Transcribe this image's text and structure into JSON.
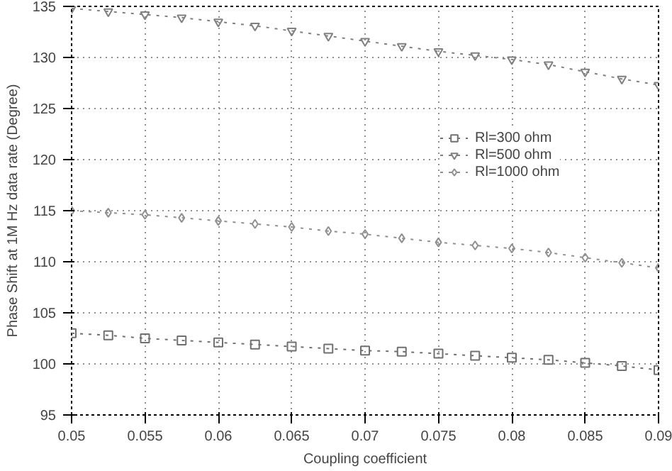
{
  "chart_data": {
    "type": "line",
    "xlabel": "Coupling coefficient",
    "ylabel": "Phase Shift at 1M Hz data rate (Degree)",
    "x": [
      0.05,
      0.0525,
      0.055,
      0.0575,
      0.06,
      0.0625,
      0.065,
      0.0675,
      0.07,
      0.0725,
      0.075,
      0.0775,
      0.08,
      0.0825,
      0.085,
      0.0875,
      0.09
    ],
    "series": [
      {
        "name": "Rl=300 ohm",
        "color": "#707070",
        "marker": "square",
        "values": [
          103.0,
          102.8,
          102.5,
          102.3,
          102.1,
          101.9,
          101.7,
          101.5,
          101.3,
          101.2,
          101.0,
          100.8,
          100.6,
          100.4,
          100.1,
          99.8,
          99.4
        ]
      },
      {
        "name": "Rl=500 ohm",
        "color": "#808080",
        "marker": "triangle",
        "values": [
          134.8,
          134.5,
          134.2,
          133.9,
          133.5,
          133.1,
          132.6,
          132.1,
          131.6,
          131.1,
          130.6,
          130.2,
          129.8,
          129.3,
          128.6,
          127.9,
          127.3
        ]
      },
      {
        "name": "Rl=1000 ohm",
        "color": "#909090",
        "marker": "diamond",
        "values": [
          115.0,
          114.8,
          114.6,
          114.3,
          114.0,
          113.7,
          113.4,
          113.0,
          112.7,
          112.3,
          111.9,
          111.6,
          111.3,
          110.9,
          110.4,
          109.9,
          109.4
        ]
      }
    ],
    "xlim": [
      0.05,
      0.09
    ],
    "ylim": [
      95,
      135
    ],
    "xticks": [
      0.05,
      0.055,
      0.06,
      0.065,
      0.07,
      0.075,
      0.08,
      0.085,
      {
        "value": 0.09,
        "label": "0.09"
      }
    ],
    "yticks": [
      95,
      100,
      105,
      110,
      115,
      120,
      125,
      130,
      135
    ],
    "grid": true,
    "legend": "right",
    "line_style": "dotted"
  }
}
